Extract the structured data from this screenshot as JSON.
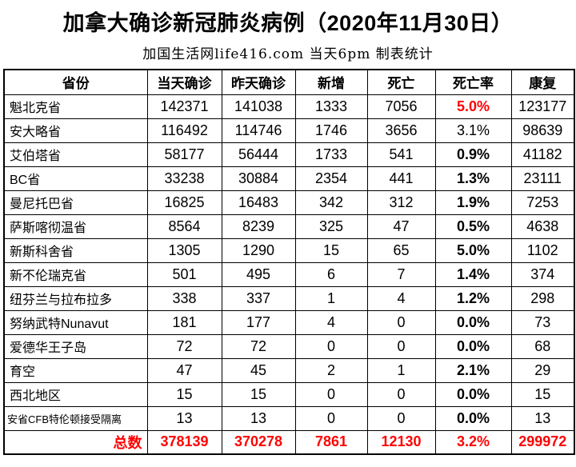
{
  "title": "加拿大确诊新冠肺炎病例（2020年11月30日）",
  "subtitle": "加国生活网life416.com 当天6pm 制表统计",
  "colors": {
    "accent_red": "#FF0000",
    "border": "#000000",
    "background": "#FFFFFF"
  },
  "chart_data": {
    "type": "table",
    "columns": [
      "省份",
      "当天确诊",
      "昨天确诊",
      "新增",
      "死亡",
      "死亡率",
      "康复"
    ],
    "rows": [
      {
        "province": "魁北克省",
        "today": 142371,
        "yesterday": 141038,
        "new_cases": 1333,
        "deaths": 7056,
        "death_rate": "5.0%",
        "recovered": 123177,
        "rate_style": "red",
        "small_name": false
      },
      {
        "province": "安大略省",
        "today": 116492,
        "yesterday": 114746,
        "new_cases": 1746,
        "deaths": 3656,
        "death_rate": "3.1%",
        "recovered": 98639,
        "rate_style": "normal",
        "small_name": false
      },
      {
        "province": "艾伯塔省",
        "today": 58177,
        "yesterday": 56444,
        "new_cases": 1733,
        "deaths": 541,
        "death_rate": "0.9%",
        "recovered": 41182,
        "rate_style": "bold",
        "small_name": false
      },
      {
        "province": "BC省",
        "today": 33238,
        "yesterday": 30884,
        "new_cases": 2354,
        "deaths": 441,
        "death_rate": "1.3%",
        "recovered": 23111,
        "rate_style": "bold",
        "small_name": false
      },
      {
        "province": "曼尼托巴省",
        "today": 16825,
        "yesterday": 16483,
        "new_cases": 342,
        "deaths": 312,
        "death_rate": "1.9%",
        "recovered": 7253,
        "rate_style": "bold",
        "small_name": false
      },
      {
        "province": "萨斯喀彻温省",
        "today": 8564,
        "yesterday": 8239,
        "new_cases": 325,
        "deaths": 47,
        "death_rate": "0.5%",
        "recovered": 4638,
        "rate_style": "bold",
        "small_name": false
      },
      {
        "province": "新斯科舍省",
        "today": 1305,
        "yesterday": 1290,
        "new_cases": 15,
        "deaths": 65,
        "death_rate": "5.0%",
        "recovered": 1102,
        "rate_style": "bold",
        "small_name": false
      },
      {
        "province": "新不伦瑞克省",
        "today": 501,
        "yesterday": 495,
        "new_cases": 6,
        "deaths": 7,
        "death_rate": "1.4%",
        "recovered": 374,
        "rate_style": "bold",
        "small_name": false
      },
      {
        "province": "纽芬兰与拉布拉多",
        "today": 338,
        "yesterday": 337,
        "new_cases": 1,
        "deaths": 4,
        "death_rate": "1.2%",
        "recovered": 298,
        "rate_style": "bold",
        "small_name": false
      },
      {
        "province": "努纳武特Nunavut",
        "today": 181,
        "yesterday": 177,
        "new_cases": 4,
        "deaths": 0,
        "death_rate": "0.0%",
        "recovered": 73,
        "rate_style": "bold",
        "small_name": false
      },
      {
        "province": "爱德华王子岛",
        "today": 72,
        "yesterday": 72,
        "new_cases": 0,
        "deaths": 0,
        "death_rate": "0.0%",
        "recovered": 68,
        "rate_style": "bold",
        "small_name": false
      },
      {
        "province": "育空",
        "today": 47,
        "yesterday": 45,
        "new_cases": 2,
        "deaths": 1,
        "death_rate": "2.1%",
        "recovered": 29,
        "rate_style": "bold",
        "small_name": false
      },
      {
        "province": "西北地区",
        "today": 15,
        "yesterday": 15,
        "new_cases": 0,
        "deaths": 0,
        "death_rate": "0.0%",
        "recovered": 15,
        "rate_style": "bold",
        "small_name": false
      },
      {
        "province": "安省CFB特伦顿接受隔离",
        "today": 13,
        "yesterday": 13,
        "new_cases": 0,
        "deaths": 0,
        "death_rate": "0.0%",
        "recovered": 13,
        "rate_style": "bold",
        "small_name": true
      }
    ],
    "total": {
      "label": "总数",
      "today": 378139,
      "yesterday": 370278,
      "new_cases": 7861,
      "deaths": 12130,
      "death_rate": "3.2%",
      "recovered": 299972
    }
  }
}
